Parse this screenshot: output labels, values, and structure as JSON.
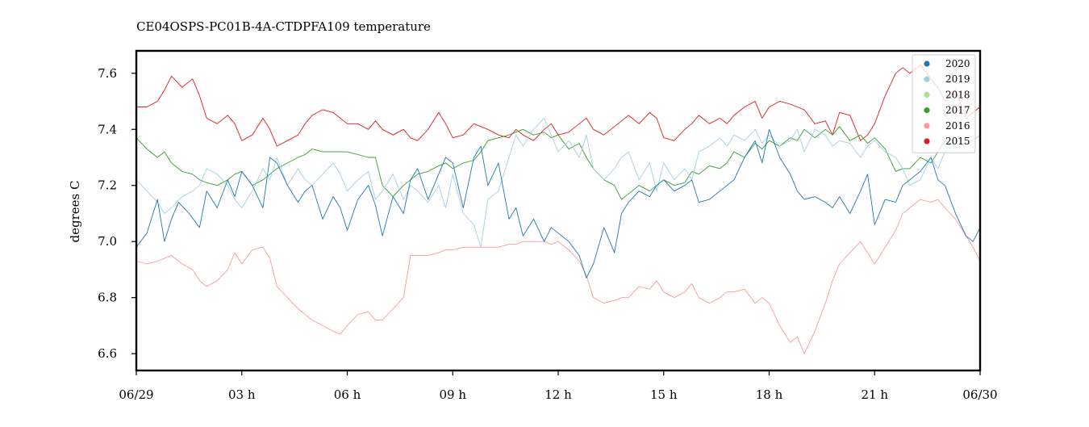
{
  "chart_data": {
    "type": "line",
    "title": "CE04OSPS-PC01B-4A-CTDPFA109 temperature",
    "xlabel": "",
    "ylabel": "degrees C",
    "xlim": [
      0,
      24
    ],
    "ylim": [
      6.54,
      7.68
    ],
    "x_ticks": [
      {
        "x": 0,
        "label": "06/29"
      },
      {
        "x": 3,
        "label": "03 h"
      },
      {
        "x": 6,
        "label": "06 h"
      },
      {
        "x": 9,
        "label": "09 h"
      },
      {
        "x": 12,
        "label": "12 h"
      },
      {
        "x": 15,
        "label": "15 h"
      },
      {
        "x": 18,
        "label": "18 h"
      },
      {
        "x": 21,
        "label": "21 h"
      },
      {
        "x": 24,
        "label": "06/30"
      }
    ],
    "y_ticks": [
      {
        "y": 6.6,
        "label": "6.6"
      },
      {
        "y": 6.8,
        "label": "6.8"
      },
      {
        "y": 7.0,
        "label": "7.0"
      },
      {
        "y": 7.2,
        "label": "7.2"
      },
      {
        "y": 7.4,
        "label": "7.4"
      },
      {
        "y": 7.6,
        "label": "7.6"
      }
    ],
    "grid": false,
    "legend_position": "top-right",
    "series": [
      {
        "name": "2020",
        "color": "#1f78b4",
        "x": [
          0,
          0.3,
          0.6,
          0.8,
          1,
          1.2,
          1.5,
          1.8,
          2,
          2.3,
          2.6,
          2.8,
          3,
          3.3,
          3.6,
          3.8,
          4,
          4.3,
          4.6,
          4.8,
          5,
          5.3,
          5.6,
          5.8,
          6,
          6.3,
          6.6,
          6.8,
          7,
          7.3,
          7.6,
          7.8,
          8,
          8.3,
          8.6,
          8.8,
          9,
          9.3,
          9.6,
          9.8,
          10,
          10.3,
          10.6,
          10.8,
          11,
          11.3,
          11.6,
          11.8,
          12,
          12.3,
          12.6,
          12.8,
          13,
          13.3,
          13.6,
          13.8,
          14,
          14.3,
          14.6,
          14.8,
          15,
          15.3,
          15.6,
          15.8,
          16,
          16.3,
          16.6,
          16.8,
          17,
          17.3,
          17.6,
          17.8,
          18,
          18.3,
          18.6,
          18.8,
          19,
          19.3,
          19.6,
          19.8,
          20,
          20.3,
          20.6,
          20.8,
          21,
          21.3,
          21.6,
          21.8,
          22,
          22.3,
          22.6,
          22.8,
          23,
          23.3,
          23.6,
          23.8,
          24
        ],
        "y": [
          6.98,
          7.03,
          7.15,
          7.0,
          7.08,
          7.14,
          7.1,
          7.05,
          7.18,
          7.12,
          7.22,
          7.16,
          7.25,
          7.2,
          7.12,
          7.3,
          7.28,
          7.2,
          7.14,
          7.18,
          7.2,
          7.08,
          7.16,
          7.12,
          7.04,
          7.15,
          7.2,
          7.13,
          7.02,
          7.16,
          7.1,
          7.22,
          7.26,
          7.15,
          7.24,
          7.3,
          7.28,
          7.12,
          7.3,
          7.34,
          7.2,
          7.28,
          7.08,
          7.12,
          7.02,
          7.08,
          7.0,
          7.05,
          7.03,
          7.0,
          6.95,
          6.87,
          6.92,
          7.05,
          6.96,
          7.1,
          7.14,
          7.18,
          7.16,
          7.2,
          7.22,
          7.18,
          7.2,
          7.22,
          7.14,
          7.15,
          7.18,
          7.2,
          7.22,
          7.3,
          7.36,
          7.28,
          7.4,
          7.3,
          7.24,
          7.18,
          7.15,
          7.16,
          7.14,
          7.12,
          7.16,
          7.1,
          7.18,
          7.24,
          7.06,
          7.15,
          7.14,
          7.2,
          7.22,
          7.25,
          7.3,
          7.22,
          7.2,
          7.1,
          7.02,
          7.0,
          7.05
        ]
      },
      {
        "name": "2019",
        "color": "#a6cee3",
        "x": [
          0,
          0.3,
          0.6,
          0.8,
          1,
          1.3,
          1.6,
          1.8,
          2,
          2.3,
          2.6,
          2.8,
          3,
          3.3,
          3.6,
          3.8,
          4,
          4.3,
          4.6,
          4.8,
          5,
          5.3,
          5.6,
          5.8,
          6,
          6.3,
          6.6,
          6.8,
          7,
          7.3,
          7.6,
          7.8,
          8,
          8.3,
          8.6,
          8.8,
          9,
          9.3,
          9.6,
          9.8,
          10,
          10.3,
          10.6,
          10.8,
          11,
          11.3,
          11.6,
          11.8,
          12,
          12.3,
          12.6,
          12.8,
          13,
          13.3,
          13.6,
          13.8,
          14,
          14.3,
          14.6,
          14.8,
          15,
          15.3,
          15.6,
          15.8,
          16,
          16.3,
          16.6,
          16.8,
          17,
          17.3,
          17.6,
          17.8,
          18,
          18.3,
          18.6,
          18.8,
          19,
          19.3,
          19.6,
          19.8,
          20,
          20.3,
          20.6,
          20.8,
          21,
          21.3,
          21.6,
          21.8,
          22,
          22.3,
          22.6,
          22.8,
          23,
          23.3,
          23.6,
          23.8,
          24
        ],
        "y": [
          7.22,
          7.18,
          7.14,
          7.1,
          7.12,
          7.16,
          7.18,
          7.2,
          7.26,
          7.24,
          7.2,
          7.15,
          7.12,
          7.18,
          7.26,
          7.22,
          7.3,
          7.2,
          7.26,
          7.22,
          7.2,
          7.24,
          7.28,
          7.24,
          7.18,
          7.22,
          7.25,
          7.15,
          7.18,
          7.24,
          7.15,
          7.2,
          7.18,
          7.14,
          7.2,
          7.12,
          7.24,
          7.1,
          7.06,
          6.98,
          7.15,
          7.18,
          7.3,
          7.38,
          7.34,
          7.4,
          7.44,
          7.38,
          7.32,
          7.36,
          7.3,
          7.38,
          7.26,
          7.22,
          7.26,
          7.3,
          7.32,
          7.22,
          7.28,
          7.18,
          7.28,
          7.22,
          7.26,
          7.22,
          7.32,
          7.34,
          7.37,
          7.34,
          7.38,
          7.36,
          7.4,
          7.35,
          7.38,
          7.34,
          7.36,
          7.4,
          7.32,
          7.4,
          7.38,
          7.34,
          7.36,
          7.35,
          7.3,
          7.34,
          7.36,
          7.32,
          7.3,
          7.26,
          7.2,
          7.22,
          7.3,
          7.26,
          7.32,
          7.36,
          7.34,
          7.36,
          7.38
        ]
      },
      {
        "name": "2018",
        "color": "#b2df8a",
        "x": [],
        "y": []
      },
      {
        "name": "2017",
        "color": "#33a02c",
        "x": [
          0,
          0.3,
          0.6,
          0.8,
          1,
          1.3,
          1.6,
          1.8,
          2,
          2.3,
          2.6,
          2.8,
          3,
          3.3,
          3.6,
          3.8,
          4,
          4.3,
          4.6,
          4.8,
          5,
          5.3,
          5.6,
          5.8,
          6,
          6.3,
          6.6,
          6.8,
          7,
          7.3,
          7.6,
          7.8,
          8,
          8.3,
          8.6,
          8.8,
          9,
          9.3,
          9.6,
          9.8,
          10,
          10.3,
          10.6,
          10.8,
          11,
          11.3,
          11.6,
          11.8,
          12,
          12.3,
          12.6,
          12.8,
          13,
          13.3,
          13.6,
          13.8,
          14,
          14.3,
          14.6,
          14.8,
          15,
          15.3,
          15.6,
          15.8,
          16,
          16.3,
          16.6,
          16.8,
          17,
          17.3,
          17.6,
          17.8,
          18,
          18.3,
          18.6,
          18.8,
          19,
          19.3,
          19.6,
          19.8,
          20,
          20.3,
          20.6,
          20.8,
          21,
          21.3,
          21.6,
          21.8,
          22,
          22.3,
          22.6,
          22.8,
          23,
          23.3
        ],
        "y": [
          7.37,
          7.33,
          7.3,
          7.32,
          7.28,
          7.25,
          7.24,
          7.22,
          7.21,
          7.2,
          7.22,
          7.24,
          7.25,
          7.2,
          7.22,
          7.24,
          7.26,
          7.28,
          7.3,
          7.31,
          7.33,
          7.32,
          7.32,
          7.32,
          7.32,
          7.31,
          7.3,
          7.3,
          7.2,
          7.16,
          7.2,
          7.22,
          7.24,
          7.25,
          7.27,
          7.28,
          7.26,
          7.28,
          7.29,
          7.32,
          7.36,
          7.37,
          7.38,
          7.39,
          7.4,
          7.38,
          7.39,
          7.37,
          7.38,
          7.33,
          7.35,
          7.3,
          7.26,
          7.22,
          7.2,
          7.15,
          7.17,
          7.2,
          7.18,
          7.2,
          7.22,
          7.2,
          7.21,
          7.25,
          7.24,
          7.27,
          7.26,
          7.28,
          7.32,
          7.3,
          7.35,
          7.33,
          7.36,
          7.34,
          7.37,
          7.36,
          7.4,
          7.37,
          7.4,
          7.38,
          7.41,
          7.36,
          7.38,
          7.35,
          7.37,
          7.33,
          7.25,
          7.26,
          7.26,
          7.3,
          7.28,
          7.32,
          7.36,
          7.34
        ]
      },
      {
        "name": "2016",
        "color": "#fb9a99",
        "x": [
          0,
          0.3,
          0.6,
          0.8,
          1,
          1.3,
          1.6,
          1.8,
          2,
          2.3,
          2.6,
          2.8,
          3,
          3.3,
          3.6,
          3.8,
          4,
          4.3,
          4.6,
          4.8,
          5,
          5.3,
          5.6,
          5.8,
          6,
          6.3,
          6.6,
          6.8,
          7,
          7.3,
          7.6,
          7.8,
          8,
          8.3,
          8.6,
          8.8,
          9,
          9.3,
          9.6,
          9.8,
          10,
          10.3,
          10.6,
          10.8,
          11,
          11.3,
          11.6,
          11.8,
          12,
          12.3,
          12.6,
          12.8,
          13,
          13.3,
          13.6,
          13.8,
          14,
          14.3,
          14.6,
          14.8,
          15,
          15.3,
          15.6,
          15.8,
          16,
          16.3,
          16.6,
          16.8,
          17,
          17.3,
          17.6,
          17.8,
          18,
          18.3,
          18.6,
          18.8,
          19,
          19.3,
          19.6,
          19.8,
          20,
          20.3,
          20.6,
          20.8,
          21,
          21.3,
          21.6,
          21.8,
          22,
          22.3,
          22.6,
          22.8,
          23,
          23.3,
          23.6,
          23.8,
          24
        ],
        "y": [
          6.93,
          6.92,
          6.93,
          6.94,
          6.95,
          6.92,
          6.9,
          6.86,
          6.84,
          6.86,
          6.9,
          6.96,
          6.92,
          6.97,
          6.98,
          6.94,
          6.84,
          6.8,
          6.76,
          6.74,
          6.72,
          6.7,
          6.68,
          6.67,
          6.7,
          6.74,
          6.75,
          6.72,
          6.72,
          6.76,
          6.8,
          6.95,
          6.95,
          6.95,
          6.96,
          6.97,
          6.97,
          6.98,
          6.98,
          6.98,
          6.98,
          6.98,
          6.99,
          6.99,
          7.0,
          7.0,
          7.0,
          6.99,
          7.0,
          6.97,
          6.93,
          6.88,
          6.8,
          6.78,
          6.79,
          6.8,
          6.8,
          6.84,
          6.83,
          6.86,
          6.82,
          6.8,
          6.82,
          6.85,
          6.8,
          6.78,
          6.8,
          6.82,
          6.82,
          6.83,
          6.78,
          6.8,
          6.78,
          6.7,
          6.64,
          6.66,
          6.6,
          6.68,
          6.78,
          6.86,
          6.92,
          6.96,
          7.0,
          6.96,
          6.92,
          6.98,
          7.04,
          7.1,
          7.12,
          7.15,
          7.14,
          7.15,
          7.12,
          7.08,
          7.02,
          6.98,
          6.93
        ]
      },
      {
        "name": "2015",
        "color": "#e31a1c",
        "x": [
          0,
          0.3,
          0.6,
          0.8,
          1,
          1.3,
          1.6,
          1.8,
          2,
          2.3,
          2.6,
          2.8,
          3,
          3.3,
          3.6,
          3.8,
          4,
          4.3,
          4.6,
          4.8,
          5,
          5.3,
          5.6,
          5.8,
          6,
          6.3,
          6.6,
          6.8,
          7,
          7.3,
          7.6,
          7.8,
          8,
          8.3,
          8.6,
          8.8,
          9,
          9.3,
          9.6,
          9.8,
          10,
          10.3,
          10.6,
          10.8,
          11,
          11.3,
          11.6,
          11.8,
          12,
          12.3,
          12.6,
          12.8,
          13,
          13.3,
          13.6,
          13.8,
          14,
          14.3,
          14.6,
          14.8,
          15,
          15.3,
          15.6,
          15.8,
          16,
          16.3,
          16.6,
          16.8,
          17,
          17.3,
          17.6,
          17.8,
          18,
          18.3,
          18.6,
          18.8,
          19,
          19.3,
          19.6,
          19.8,
          20,
          20.3,
          20.6,
          20.8,
          21,
          21.3,
          21.6,
          21.8,
          22,
          22.3,
          22.6,
          22.8,
          23,
          23.3,
          23.6,
          23.8,
          24
        ],
        "y": [
          7.48,
          7.48,
          7.5,
          7.54,
          7.59,
          7.55,
          7.58,
          7.52,
          7.44,
          7.42,
          7.45,
          7.42,
          7.36,
          7.38,
          7.44,
          7.4,
          7.34,
          7.36,
          7.38,
          7.42,
          7.45,
          7.47,
          7.46,
          7.44,
          7.42,
          7.42,
          7.4,
          7.43,
          7.4,
          7.38,
          7.4,
          7.37,
          7.36,
          7.4,
          7.46,
          7.42,
          7.37,
          7.38,
          7.42,
          7.41,
          7.4,
          7.38,
          7.37,
          7.4,
          7.38,
          7.36,
          7.4,
          7.42,
          7.38,
          7.39,
          7.42,
          7.44,
          7.4,
          7.38,
          7.41,
          7.43,
          7.45,
          7.42,
          7.46,
          7.44,
          7.37,
          7.36,
          7.4,
          7.42,
          7.45,
          7.42,
          7.44,
          7.42,
          7.45,
          7.48,
          7.5,
          7.44,
          7.48,
          7.5,
          7.49,
          7.48,
          7.47,
          7.42,
          7.43,
          7.38,
          7.46,
          7.45,
          7.36,
          7.38,
          7.42,
          7.52,
          7.6,
          7.62,
          7.6,
          7.63,
          7.58,
          7.55,
          7.5,
          7.54,
          7.44,
          7.46,
          7.48
        ]
      }
    ]
  }
}
